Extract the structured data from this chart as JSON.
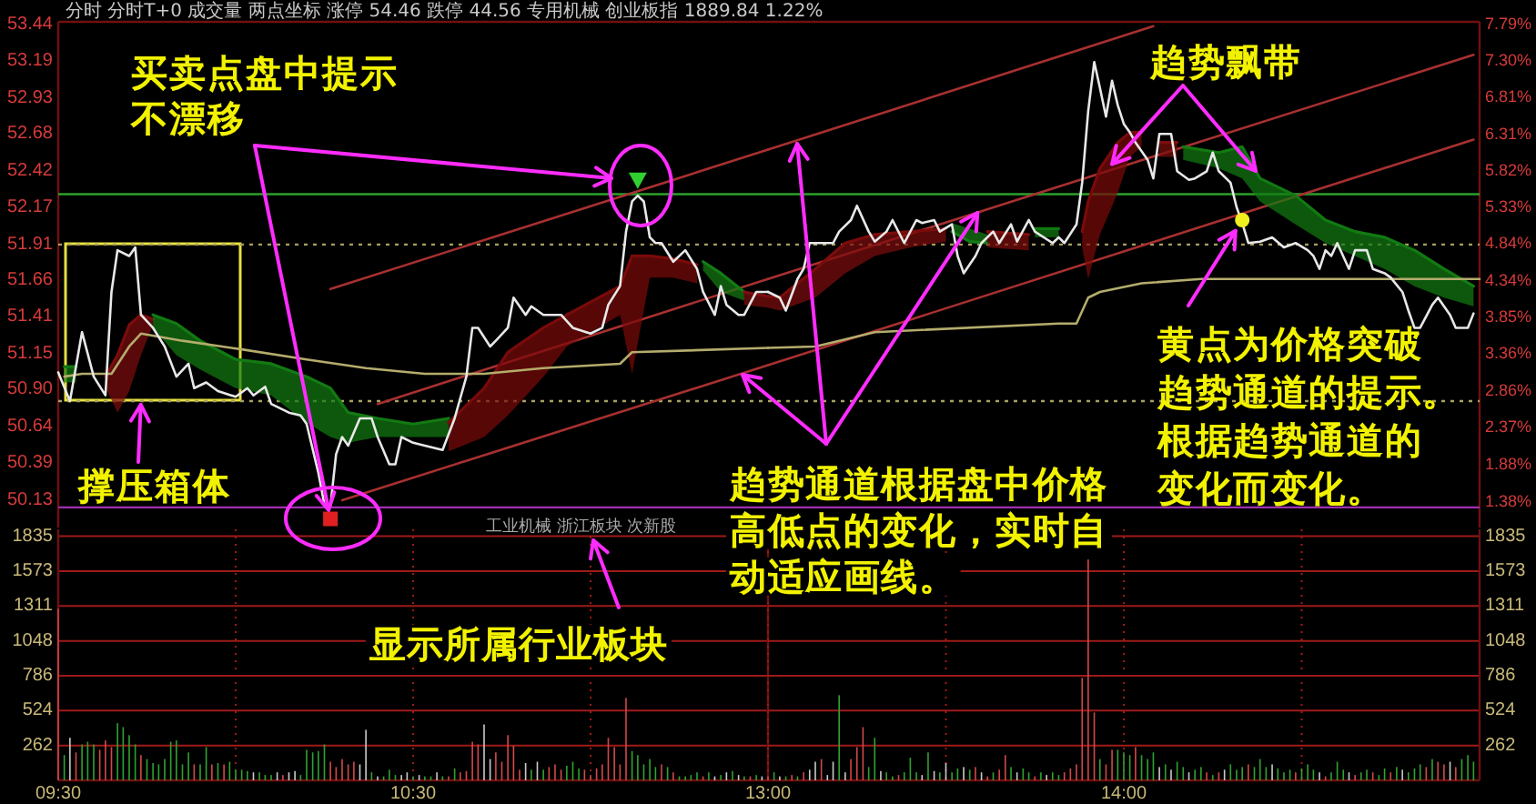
{
  "chart_data": [
    {
      "type": "line",
      "title": "分时 分时T+0 成交量 两点坐标 涨停 54.46 跌停 44.56 专用机械 创业板指 1889.84 1.22%",
      "xlim": [
        9.5,
        11.5
      ],
      "ylim": [
        49.94,
        53.46
      ],
      "yticks": [
        50.13,
        50.39,
        50.64,
        {
          "value": 50.9,
          "label": "50.90"
        },
        51.15,
        51.41,
        51.66,
        51.91,
        52.17,
        52.42,
        52.68,
        52.93,
        53.19,
        53.44
      ],
      "tick_labels": "y",
      "ref_lines": [
        {
          "axis": "y",
          "value": 52.26,
          "color": "#2aa02a"
        },
        {
          "axis": "y",
          "value": 51.91,
          "color": "#a8a060",
          "line_style": "dotted"
        },
        {
          "axis": "y",
          "value": 50.82,
          "color": "#a8a060",
          "line_style": "dotted"
        },
        {
          "axis": "y",
          "value": 50.08,
          "color": "#a030b0"
        }
      ],
      "series": [
        {
          "color": "#a83030",
          "x": [
            10.267,
            11.5
          ],
          "values": [
            51.6,
            52.57
          ]
        },
        {
          "color": "#a83030",
          "x": [
            10.4,
            11.5
          ],
          "values": [
            50.8,
            51.67
          ]
        },
        {
          "color": "#a83030",
          "x": [
            10.3,
            11.5
          ],
          "values": [
            50.13,
            51.07
          ]
        },
        {
          "color": "#107810",
          "x": [
            9.517,
            9.55
          ],
          "values": [
            51.06,
            51.06
          ],
          "upper": [
            51.06,
            51.06
          ],
          "lower": [
            50.95,
            50.95
          ]
        },
        {
          "color": "#7c0c0c",
          "x": [
            9.633,
            9.667,
            9.7,
            9.733,
            9.767
          ],
          "values": [
            50.99,
            51.14,
            51.35,
            51.42,
            51.39
          ],
          "upper": [
            50.99,
            51.14,
            51.35,
            51.42,
            51.39
          ],
          "lower": [
            50.92,
            50.74,
            50.89,
            51.14,
            51.35
          ]
        },
        {
          "color": "#127a12",
          "x": [
            9.767,
            9.833,
            9.9,
            10,
            10.1,
            10.2,
            10.267,
            10.317,
            10.4,
            10.5,
            10.6
          ],
          "values": [
            51.42,
            51.36,
            51.24,
            51.11,
            51.08,
            50.99,
            50.91,
            50.74,
            50.7,
            50.66,
            50.7
          ],
          "upper": [
            51.42,
            51.36,
            51.24,
            51.11,
            51.08,
            50.99,
            50.91,
            50.74,
            50.7,
            50.66,
            50.7
          ],
          "lower": [
            51.33,
            51.14,
            51.04,
            50.91,
            50.86,
            50.67,
            50.57,
            50.53,
            50.57,
            50.57,
            50.57
          ]
        },
        {
          "color": "#7a0a0a",
          "x": [
            10.6,
            10.7,
            10.767,
            10.867,
            10.933,
            11.083,
            11.117,
            11.167,
            11.233,
            11.3
          ],
          "values": [
            50.67,
            50.91,
            51.16,
            51.33,
            51.42,
            51.62,
            51.83,
            51.83,
            51.81,
            51.77
          ],
          "upper": [
            50.67,
            50.91,
            51.16,
            51.33,
            51.42,
            51.62,
            51.83,
            51.83,
            51.81,
            51.77
          ],
          "lower": [
            50.47,
            50.57,
            50.72,
            50.99,
            51.2,
            51.42,
            51.01,
            51.68,
            51.68,
            51.64
          ]
        },
        {
          "color": "#147c14",
          "x": [
            11.317,
            11.367,
            11.433
          ],
          "values": [
            51.79,
            51.71,
            51.58
          ],
          "upper": [
            51.79,
            51.71,
            51.58
          ],
          "lower": [
            51.73,
            51.58,
            51.52
          ]
        },
        {
          "color": "#7e0e0e",
          "x": [
            11.433,
            11.5
          ],
          "values": [
            51.58,
            51.55
          ],
          "upper": [
            51.58,
            51.55
          ],
          "lower": [
            51.49,
            51.47
          ]
        },
        {
          "color": "#b4ac6c",
          "x": [
            9.517,
            9.567,
            9.65,
            9.7,
            9.733,
            9.85,
            10.017,
            10.2,
            10.367,
            10.533,
            10.7,
            10.867,
            11.083,
            11.117,
            11.5
          ],
          "values": [
            50.99,
            51.01,
            51.01,
            51.2,
            51.29,
            51.24,
            51.18,
            51.11,
            51.05,
            51.01,
            51.01,
            51.05,
            51.08,
            51.16,
            51.19
          ]
        },
        {
          "color": "#e8e8e8",
          "x": [
            9.5,
            9.533,
            9.567,
            9.6,
            9.633,
            9.65,
            9.667,
            9.7,
            9.717,
            9.733,
            9.767,
            9.8,
            9.833,
            9.867,
            9.883,
            9.917,
            9.95,
            10,
            10.033,
            10.05,
            10.083,
            10.1,
            10.15,
            10.183,
            10.2,
            10.233,
            10.25,
            10.267,
            10.283,
            10.3,
            10.317,
            10.35,
            10.383,
            10.4,
            10.433,
            10.45,
            10.467,
            10.5,
            10.533,
            10.583,
            10.617,
            10.65,
            10.667,
            10.683,
            10.717,
            10.733,
            10.767,
            10.783,
            10.817,
            10.833,
            10.867,
            10.917,
            10.95,
            11,
            11.033,
            11.05,
            11.083,
            11.1,
            11.117,
            11.133,
            11.15,
            11.167,
            11.183,
            11.2,
            11.233,
            11.267,
            11.3,
            11.317,
            11.35,
            11.367,
            11.383,
            11.417,
            11.433,
            11.467,
            11.5
          ],
          "values": [
            51.02,
            50.82,
            51.3,
            50.99,
            50.86,
            51.58,
            51.87,
            51.83,
            51.89,
            51.42,
            51.33,
            51.2,
            50.99,
            51.08,
            50.91,
            50.95,
            50.89,
            50.85,
            50.91,
            50.86,
            50.92,
            50.8,
            50.74,
            50.72,
            50.66,
            50.32,
            50.1,
            50.09,
            50.45,
            50.57,
            50.51,
            50.7,
            50.7,
            50.57,
            50.38,
            50.38,
            50.57,
            50.53,
            50.51,
            50.48,
            50.7,
            50.99,
            51.33,
            51.33,
            51.2,
            51.24,
            51.33,
            51.54,
            51.42,
            51.48,
            51.42,
            51.42,
            51.33,
            51.29,
            51.33,
            51.49,
            51.62,
            52.0,
            52.21,
            52.25,
            52.21,
            51.96,
            51.92,
            51.92,
            51.79,
            51.87,
            51.74,
            51.58,
            51.42,
            51.62,
            51.49,
            51.42,
            51.42,
            51.58,
            51.58
          ]
        },
        {
          "type": "scatter",
          "marker": "triangle",
          "color": "#30d030",
          "x": [
            11.133
          ],
          "values": [
            52.36
          ]
        },
        {
          "type": "scatter",
          "marker": "square",
          "color": "#e02020",
          "x": [
            10.267
          ],
          "values": [
            50.0
          ]
        }
      ],
      "annotations": [
        {
          "text": "买卖点盘中提示不漂移",
          "x": 10.267,
          "y": 50.0
        },
        {
          "text": "撑压箱体",
          "x": 9.733,
          "y": 50.82
        },
        "工业机械 浙江板块 次新股"
      ]
    },
    {
      "type": "line",
      "xlim": [
        13,
        15
      ],
      "ylim": [
        49.94,
        53.46
      ],
      "y2lim": [
        1.02,
        7.81
      ],
      "y2ticks": [
        {
          "value": 1.38,
          "label": "1.38%"
        },
        {
          "value": 1.88,
          "label": "1.88%"
        },
        {
          "value": 2.37,
          "label": "2.37%"
        },
        {
          "value": 2.86,
          "label": "2.86%"
        },
        {
          "value": 3.36,
          "label": "3.36%"
        },
        {
          "value": 3.85,
          "label": "3.85%"
        },
        {
          "value": 4.34,
          "label": "4.34%"
        },
        {
          "value": 4.84,
          "label": "4.84%"
        },
        {
          "value": 5.33,
          "label": "5.33%"
        },
        {
          "value": 5.82,
          "label": "5.82%"
        },
        {
          "value": 6.31,
          "label": "6.31%"
        },
        {
          "value": 6.81,
          "label": "6.81%"
        },
        {
          "value": 7.3,
          "label": "7.30%"
        },
        {
          "value": 7.79,
          "label": "7.79%"
        }
      ],
      "tick_labels": "y",
      "ref_lines": [
        {
          "axis": "y",
          "value": 52.26,
          "color": "#2aa02a"
        },
        {
          "axis": "y",
          "value": 51.91,
          "color": "#a8a060",
          "line_style": "dotted"
        },
        {
          "axis": "y",
          "value": 50.82,
          "color": "#a8a060",
          "line_style": "dotted"
        },
        {
          "axis": "y",
          "value": 50.08,
          "color": "#a030b0"
        }
      ],
      "series": [
        {
          "color": "#a83030",
          "x": [
            13,
            14.083
          ],
          "values": [
            52.57,
            53.43
          ]
        },
        {
          "color": "#a83030",
          "x": [
            13,
            14.983
          ],
          "values": [
            51.67,
            53.23
          ]
        },
        {
          "color": "#a83030",
          "x": [
            13,
            14.983
          ],
          "values": [
            51.07,
            52.64
          ]
        },
        {
          "color": "#7c0c0c",
          "x": [
            13,
            13.033,
            13.133,
            13.217,
            13.3,
            13.4,
            13.5
          ],
          "values": [
            51.55,
            51.54,
            51.74,
            51.92,
            51.98,
            52.0,
            52.02
          ],
          "upper": [
            51.55,
            51.54,
            51.74,
            51.92,
            51.98,
            52.0,
            52.02
          ],
          "lower": [
            51.47,
            51.45,
            51.54,
            51.71,
            51.83,
            51.89,
            51.93
          ]
        },
        {
          "color": "#157d15",
          "x": [
            13.517,
            13.567,
            13.617
          ],
          "values": [
            52.0,
            51.93,
            51.92
          ],
          "upper": [
            52.06,
            52.02,
            51.98
          ],
          "lower": [
            52.0,
            51.93,
            51.92
          ]
        },
        {
          "color": "#7e0e0e",
          "x": [
            13.617,
            13.667,
            13.733
          ],
          "values": [
            52.0,
            51.99,
            51.98
          ],
          "upper": [
            52.0,
            51.99,
            51.98
          ],
          "lower": [
            51.89,
            51.88,
            51.87
          ]
        },
        {
          "color": "#117911",
          "x": [
            13.75,
            13.817
          ],
          "values": [
            52.02,
            52.02
          ],
          "upper": [
            52.02,
            52.02
          ],
          "lower": [
            51.96,
            51.96
          ]
        },
        {
          "color": "#7a0a0a",
          "x": [
            13.883,
            13.9,
            13.933,
            13.983,
            14.017,
            14.05
          ],
          "values": [
            52.0,
            52.21,
            52.44,
            52.62,
            52.69,
            52.69
          ],
          "upper": [
            52.0,
            52.21,
            52.44,
            52.62,
            52.69,
            52.69
          ],
          "lower": [
            51.89,
            51.67,
            51.98,
            52.27,
            52.52,
            52.59
          ]
        },
        {
          "color": "#7d0d0d",
          "x": [
            14.1,
            14.15
          ],
          "values": [
            52.62,
            52.62
          ],
          "upper": [
            52.62,
            52.62
          ],
          "lower": [
            52.52,
            52.52
          ]
        },
        {
          "color": "#127a12",
          "x": [
            14.167,
            14.267,
            14.333,
            14.383,
            14.483,
            14.567,
            14.65,
            14.733,
            14.817,
            14.9,
            14.983
          ],
          "values": [
            52.59,
            52.55,
            52.59,
            52.37,
            52.25,
            52.08,
            52.0,
            51.96,
            51.87,
            51.74,
            51.62
          ],
          "upper": [
            52.59,
            52.55,
            52.59,
            52.37,
            52.25,
            52.08,
            52.0,
            51.96,
            51.87,
            51.74,
            51.62
          ],
          "lower": [
            52.5,
            52.44,
            52.37,
            52.21,
            52.05,
            51.92,
            51.83,
            51.74,
            51.62,
            51.54,
            51.48
          ]
        },
        {
          "color": "#b4ac6c",
          "x": [
            13,
            13.133,
            13.2,
            13.3,
            13.817,
            13.867,
            13.9,
            13.933,
            14.05,
            14.217,
            15
          ],
          "values": [
            51.19,
            51.2,
            51.24,
            51.3,
            51.36,
            51.36,
            51.54,
            51.58,
            51.64,
            51.67,
            51.67
          ]
        },
        {
          "color": "#e8e8e8",
          "x": [
            13,
            13.033,
            13.05,
            13.083,
            13.1,
            13.117,
            13.15,
            13.183,
            13.2,
            13.233,
            13.25,
            13.283,
            13.3,
            13.333,
            13.35,
            13.383,
            13.417,
            13.433,
            13.467,
            13.483,
            13.517,
            13.533,
            13.55,
            13.583,
            13.6,
            13.633,
            13.65,
            13.683,
            13.7,
            13.733,
            13.75,
            13.8,
            13.817,
            13.833,
            13.867,
            13.883,
            13.9,
            13.917,
            13.933,
            13.95,
            13.967,
            13.983,
            14,
            14.017,
            14.033,
            14.067,
            14.083,
            14.1,
            14.133,
            14.15,
            14.183,
            14.2,
            14.233,
            14.25,
            14.267,
            14.3,
            14.317,
            14.333,
            14.35,
            14.383,
            14.417,
            14.45,
            14.483,
            14.517,
            14.533,
            14.55,
            14.567,
            14.583,
            14.6,
            14.633,
            14.65,
            14.683,
            14.7,
            14.733,
            14.75,
            14.783,
            14.8,
            14.817,
            14.833,
            14.867,
            14.883,
            14.917,
            14.933,
            14.967,
            14.983
          ],
          "values": [
            51.58,
            51.54,
            51.45,
            51.67,
            51.74,
            51.92,
            51.92,
            51.92,
            52.0,
            52.08,
            52.18,
            52.0,
            51.93,
            52.0,
            52.08,
            51.92,
            52.08,
            52.06,
            52.08,
            52.0,
            52.05,
            51.83,
            51.71,
            51.83,
            51.92,
            52.0,
            51.92,
            52.05,
            51.93,
            52.08,
            52.0,
            51.92,
            51.96,
            51.92,
            52.05,
            52.34,
            52.84,
            53.18,
            53.0,
            52.8,
            53.05,
            52.88,
            52.75,
            52.69,
            52.62,
            52.5,
            52.37,
            52.68,
            52.68,
            52.42,
            52.36,
            52.37,
            52.42,
            52.55,
            52.42,
            52.34,
            52.17,
            52.06,
            51.92,
            51.93,
            51.96,
            51.89,
            51.92,
            51.87,
            51.83,
            51.74,
            51.87,
            51.83,
            51.92,
            51.74,
            51.87,
            51.87,
            51.74,
            51.71,
            51.68,
            51.58,
            51.45,
            51.33,
            51.33,
            51.49,
            51.54,
            51.42,
            51.33,
            51.33,
            51.43
          ]
        },
        {
          "type": "scatter",
          "marker": "circle",
          "color": "#f0f020",
          "x": [
            14.333
          ],
          "values": [
            52.08
          ]
        }
      ],
      "annotations": [
        {
          "text": "趋势通道根据盘中价格高低点的变化，实时自动适应画线。",
          "x": 13.589,
          "y": 52.13
        },
        {
          "text": "趋势飘带",
          "x": 13.967,
          "y": 52.47
        },
        {
          "text": "黄点为价格突破趋势通道的提示。根据趋势通道的变化而变化。",
          "x": 14.333,
          "y": 52.08
        }
      ]
    },
    {
      "type": "bar",
      "xlim": [
        9.5,
        11.5
      ],
      "xticks": [
        {
          "value": 9.5,
          "label": "09:30"
        },
        {
          "value": 10,
          "label": null
        },
        {
          "value": 10.5,
          "label": "10:30"
        },
        {
          "value": 11,
          "label": null
        }
      ],
      "ylim": [
        0,
        1887
      ],
      "yticks": [
        262,
        524,
        786,
        1048,
        1311,
        1573,
        1835
      ],
      "grid": true,
      "x": [
        9.5,
        9.517,
        9.533,
        9.55,
        9.567,
        9.583,
        9.6,
        9.617,
        9.633,
        9.65,
        9.667,
        9.683,
        9.7,
        9.717,
        9.733,
        9.75,
        9.767,
        9.783,
        9.8,
        9.817,
        9.833,
        9.85,
        9.867,
        9.883,
        9.9,
        9.917,
        9.933,
        9.95,
        9.967,
        9.983,
        10,
        10.017,
        10.033,
        10.05,
        10.067,
        10.083,
        10.1,
        10.117,
        10.133,
        10.15,
        10.167,
        10.183,
        10.2,
        10.217,
        10.233,
        10.25,
        10.267,
        10.283,
        10.3,
        10.317,
        10.333,
        10.35,
        10.367,
        10.383,
        10.4,
        10.417,
        10.433,
        10.45,
        10.467,
        10.483,
        10.5,
        10.517,
        10.533,
        10.55,
        10.567,
        10.583,
        10.6,
        10.617,
        10.633,
        10.65,
        10.667,
        10.683,
        10.7,
        10.717,
        10.733,
        10.75,
        10.767,
        10.783,
        10.8,
        10.817,
        10.833,
        10.85,
        10.867,
        10.883,
        10.9,
        10.917,
        10.933,
        10.95,
        10.967,
        10.983,
        11,
        11.017,
        11.033,
        11.05,
        11.067,
        11.083,
        11.1,
        11.117,
        11.133,
        11.15,
        11.167,
        11.183,
        11.2,
        11.217,
        11.233,
        11.25,
        11.267,
        11.283,
        11.3,
        11.317,
        11.333,
        11.35,
        11.367,
        11.383,
        11.4,
        11.417,
        11.433,
        11.45,
        11.467,
        11.483
      ],
      "values": [
        1290,
        190,
        320,
        210,
        270,
        290,
        270,
        230,
        300,
        250,
        430,
        400,
        340,
        270,
        190,
        160,
        130,
        120,
        160,
        290,
        300,
        120,
        210,
        120,
        120,
        250,
        120,
        130,
        120,
        140,
        80,
        80,
        70,
        60,
        60,
        40,
        40,
        60,
        40,
        60,
        70,
        40,
        230,
        210,
        220,
        270,
        140,
        100,
        160,
        120,
        140,
        120,
        380,
        60,
        30,
        30,
        80,
        40,
        40,
        60,
        30,
        40,
        30,
        30,
        60,
        30,
        30,
        90,
        60,
        70,
        290,
        270,
        420,
        160,
        210,
        140,
        340,
        260,
        80,
        130,
        80,
        140,
        80,
        100,
        120,
        80,
        110,
        140,
        90,
        80,
        40,
        90,
        120,
        320,
        250,
        120,
        620,
        220,
        190,
        120,
        160,
        100,
        120,
        100,
        60,
        30,
        30,
        40,
        60,
        30,
        60,
        30,
        40,
        60,
        70,
        40,
        30,
        30,
        40,
        30
      ],
      "colors": [
        "#d04848",
        "#30a030",
        "#c8c8c8",
        "#d04848",
        "#30a030",
        "#30a030",
        "#30a030",
        "#d04848",
        "#d04848",
        "#d04848",
        "#30a030",
        "#30a030",
        "#30a030",
        "#30a030",
        "#d04848",
        "#30a030",
        "#30a030",
        "#30a030",
        "#30a030",
        "#30a030",
        "#30a030",
        "#30a030",
        "#30a030",
        "#d04848",
        "#30a030",
        "#30a030",
        "#d04848",
        "#30a030",
        "#d04848",
        "#30a030",
        "#30a030",
        "#30a030",
        "#30a030",
        "#c8c8c8",
        "#30a030",
        "#30a030",
        "#30a030",
        "#c8c8c8",
        "#d04848",
        "#c8c8c8",
        "#c8c8c8",
        "#30a030",
        "#30a030",
        "#30a030",
        "#30a030",
        "#30a030",
        "#d04848",
        "#d04848",
        "#d04848",
        "#d04848",
        "#d04848",
        "#c8c8c8",
        "#c8c8c8",
        "#30a030",
        "#c8c8c8",
        "#30a030",
        "#30a030",
        "#30a030",
        "#c8c8c8",
        "#c8c8c8",
        "#30a030",
        "#c8c8c8",
        "#30a030",
        "#30a030",
        "#c8c8c8",
        "#30a030",
        "#d04848",
        "#30a030",
        "#d04848",
        "#d04848",
        "#d04848",
        "#d04848",
        "#c8c8c8",
        "#c8c8c8",
        "#d04848",
        "#d04848",
        "#d04848",
        "#d04848",
        "#d04848",
        "#c8c8c8",
        "#30a030",
        "#c8c8c8",
        "#30a030",
        "#d04848",
        "#d04848",
        "#d04848",
        "#30a030",
        "#30a030",
        "#30a030",
        "#d04848",
        "#d04848",
        "#d04848",
        "#d04848",
        "#d04848",
        "#d04848",
        "#d04848",
        "#d04848",
        "#30a030",
        "#30a030",
        "#30a030",
        "#30a030",
        "#30a030",
        "#d04848",
        "#30a030",
        "#d04848",
        "#30a030",
        "#30a030",
        "#30a030",
        "#30a030",
        "#d04848",
        "#30a030",
        "#c8c8c8",
        "#30a030",
        "#c8c8c8",
        "#30a030",
        "#c8c8c8",
        "#30a030",
        "#d04848",
        "#30a030",
        "#c8c8c8"
      ],
      "annotations": [
        "显示所属行业板块"
      ]
    },
    {
      "type": "bar",
      "xlim": [
        13,
        15
      ],
      "xticks": [
        {
          "value": 13,
          "label": "13:00"
        },
        {
          "value": 13.5,
          "label": null
        },
        {
          "value": 14,
          "label": "14:00"
        },
        {
          "value": 14.5,
          "label": null
        }
      ],
      "ylim": [
        0,
        1887
      ],
      "yticks": [
        262,
        524,
        786,
        1048,
        1311,
        1573,
        1835
      ],
      "grid": true,
      "x": [
        13,
        13.017,
        13.033,
        13.05,
        13.067,
        13.083,
        13.1,
        13.117,
        13.133,
        13.15,
        13.167,
        13.183,
        13.2,
        13.217,
        13.233,
        13.25,
        13.267,
        13.283,
        13.3,
        13.317,
        13.333,
        13.35,
        13.367,
        13.383,
        13.4,
        13.417,
        13.433,
        13.45,
        13.467,
        13.483,
        13.5,
        13.517,
        13.533,
        13.55,
        13.567,
        13.583,
        13.6,
        13.617,
        13.633,
        13.65,
        13.667,
        13.683,
        13.7,
        13.717,
        13.733,
        13.75,
        13.767,
        13.783,
        13.8,
        13.817,
        13.833,
        13.85,
        13.867,
        13.883,
        13.9,
        13.917,
        13.933,
        13.95,
        13.967,
        13.983,
        14,
        14.017,
        14.033,
        14.05,
        14.067,
        14.083,
        14.1,
        14.117,
        14.133,
        14.15,
        14.167,
        14.183,
        14.2,
        14.217,
        14.233,
        14.25,
        14.267,
        14.283,
        14.3,
        14.317,
        14.333,
        14.35,
        14.367,
        14.383,
        14.4,
        14.417,
        14.433,
        14.45,
        14.467,
        14.483,
        14.5,
        14.517,
        14.533,
        14.55,
        14.567,
        14.583,
        14.6,
        14.617,
        14.633,
        14.65,
        14.667,
        14.683,
        14.7,
        14.717,
        14.733,
        14.75,
        14.767,
        14.783,
        14.8,
        14.817,
        14.833,
        14.85,
        14.867,
        14.883,
        14.9,
        14.917,
        14.933,
        14.95,
        14.967,
        14.983
      ],
      "values": [
        30,
        60,
        30,
        30,
        40,
        30,
        60,
        80,
        140,
        160,
        40,
        140,
        640,
        60,
        160,
        250,
        400,
        100,
        320,
        70,
        60,
        30,
        40,
        60,
        170,
        60,
        40,
        210,
        70,
        60,
        130,
        60,
        90,
        100,
        80,
        100,
        60,
        30,
        60,
        80,
        190,
        100,
        60,
        90,
        60,
        30,
        60,
        40,
        60,
        40,
        60,
        90,
        120,
        770,
        1660,
        510,
        160,
        120,
        230,
        230,
        210,
        190,
        250,
        190,
        160,
        210,
        100,
        120,
        80,
        140,
        100,
        60,
        80,
        100,
        60,
        40,
        60,
        80,
        120,
        80,
        100,
        120,
        100,
        160,
        100,
        120,
        90,
        60,
        80,
        60,
        90,
        120,
        80,
        60,
        30,
        60,
        140,
        80,
        60,
        40,
        60,
        80,
        60,
        40,
        90,
        60,
        100,
        80,
        60,
        90,
        120,
        100,
        160,
        140,
        120,
        140,
        100,
        160,
        190,
        140
      ],
      "colors": [
        "#d04848",
        "#30a030",
        "#c8c8c8",
        "#30a030",
        "#d04848",
        "#30a030",
        "#d04848",
        "#c8c8c8",
        "#c8c8c8",
        "#d04848",
        "#c8c8c8",
        "#c8c8c8",
        "#30a030",
        "#c8c8c8",
        "#d04848",
        "#d04848",
        "#d04848",
        "#30a030",
        "#30a030",
        "#c8c8c8",
        "#30a030",
        "#30a030",
        "#d04848",
        "#30a030",
        "#30a030",
        "#30a030",
        "#c8c8c8",
        "#30a030",
        "#c8c8c8",
        "#30a030",
        "#c8c8c8",
        "#30a030",
        "#30a030",
        "#c8c8c8",
        "#30a030",
        "#d04848",
        "#c8c8c8",
        "#d04848",
        "#30a030",
        "#d04848",
        "#d04848",
        "#30a030",
        "#c8c8c8",
        "#30a030",
        "#30a030",
        "#d04848",
        "#30a030",
        "#c8c8c8",
        "#30a030",
        "#30a030",
        "#d04848",
        "#d04848",
        "#d04848",
        "#d04848",
        "#d04848",
        "#d04848",
        "#30a030",
        "#d04848",
        "#d04848",
        "#30a030",
        "#30a030",
        "#30a030",
        "#d04848",
        "#30a030",
        "#30a030",
        "#30a030",
        "#c8c8c8",
        "#30a030",
        "#c8c8c8",
        "#30a030",
        "#30a030",
        "#c8c8c8",
        "#30a030",
        "#30a030",
        "#d04848",
        "#30a030",
        "#d04848",
        "#c8c8c8",
        "#30a030",
        "#30a030",
        "#30a030",
        "#d04848",
        "#30a030",
        "#30a030",
        "#30a030",
        "#c8c8c8",
        "#30a030",
        "#30a030",
        "#30a030",
        "#d04848",
        "#30a030",
        "#30a030",
        "#30a030",
        "#c8c8c8",
        "#d04848",
        "#30a030",
        "#30a030",
        "#30a030",
        "#c8c8c8",
        "#d04848",
        "#30a030",
        "#30a030",
        "#d04848",
        "#30a030",
        "#30a030",
        "#d04848",
        "#30a030",
        "#c8c8c8",
        "#30a030",
        "#30a030",
        "#30a030",
        "#d04848",
        "#30a030",
        "#d04848",
        "#d04848",
        "#c8c8c8",
        "#d04848",
        "#30a030",
        "#30a030",
        "#30a030"
      ]
    }
  ]
}
